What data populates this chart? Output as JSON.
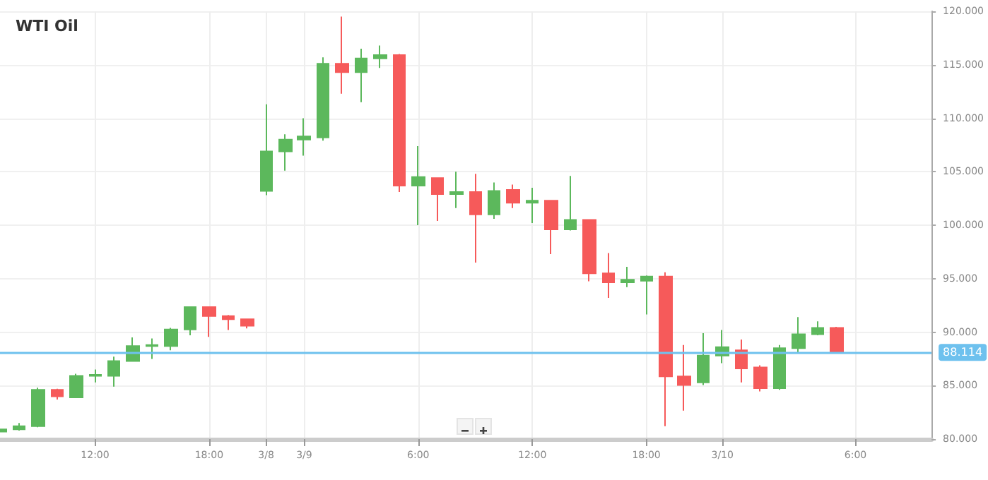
{
  "chart_data": {
    "type": "candlestick",
    "title": "WTI Oil",
    "categories": [
      null,
      null,
      null,
      null,
      null,
      "12:00",
      null,
      null,
      null,
      null,
      null,
      "18:00",
      null,
      null,
      "3/8",
      null,
      "3/9",
      null,
      null,
      null,
      null,
      null,
      "6:00",
      null,
      null,
      null,
      null,
      null,
      "12:00",
      null,
      null,
      null,
      null,
      null,
      "18:00",
      null,
      null,
      null,
      "3/10",
      null,
      null,
      null,
      null,
      null,
      null,
      "6:00",
      null,
      null,
      null,
      null
    ],
    "ohlc": [
      [
        80.7,
        81.0,
        80.4,
        80.9
      ],
      [
        80.9,
        81.5,
        80.8,
        81.2
      ],
      [
        81.2,
        84.8,
        81.1,
        84.6
      ],
      [
        84.6,
        84.7,
        83.7,
        84.0
      ],
      [
        83.9,
        86.1,
        83.9,
        85.9
      ],
      [
        85.9,
        86.5,
        85.3,
        86.0
      ],
      [
        85.9,
        87.7,
        84.9,
        87.3
      ],
      [
        87.3,
        89.5,
        87.3,
        88.7
      ],
      [
        88.7,
        89.4,
        87.5,
        88.8
      ],
      [
        88.7,
        90.4,
        88.3,
        90.25
      ],
      [
        90.25,
        92.4,
        89.7,
        92.35
      ],
      [
        92.35,
        92.4,
        89.55,
        91.5
      ],
      [
        91.5,
        91.6,
        90.2,
        91.2
      ],
      [
        91.2,
        91.2,
        90.35,
        90.6
      ],
      [
        103.2,
        111.3,
        102.8,
        106.9
      ],
      [
        106.9,
        108.5,
        105.1,
        108.0
      ],
      [
        108.0,
        110.0,
        106.5,
        108.3
      ],
      [
        108.2,
        115.7,
        107.9,
        115.1
      ],
      [
        115.1,
        119.5,
        112.3,
        114.3
      ],
      [
        114.3,
        116.5,
        111.5,
        115.6
      ],
      [
        115.6,
        116.8,
        114.7,
        115.9
      ],
      [
        115.9,
        116.0,
        103.1,
        103.7
      ],
      [
        103.7,
        107.4,
        100.0,
        104.5
      ],
      [
        104.4,
        104.4,
        100.4,
        102.9
      ],
      [
        102.9,
        105.0,
        101.6,
        103.1
      ],
      [
        103.1,
        104.8,
        96.5,
        101.0
      ],
      [
        101.0,
        104.0,
        100.6,
        103.2
      ],
      [
        103.3,
        103.8,
        101.6,
        102.1
      ],
      [
        102.1,
        103.5,
        100.2,
        102.3
      ],
      [
        102.3,
        102.3,
        97.3,
        99.6
      ],
      [
        99.6,
        104.6,
        99.5,
        100.5
      ],
      [
        100.5,
        100.5,
        94.75,
        95.5
      ],
      [
        95.5,
        97.4,
        93.2,
        94.65
      ],
      [
        94.65,
        96.1,
        94.2,
        94.9
      ],
      [
        94.8,
        95.3,
        91.65,
        95.2
      ],
      [
        95.2,
        95.6,
        81.2,
        85.85
      ],
      [
        85.85,
        88.8,
        82.65,
        85.05
      ],
      [
        85.3,
        89.9,
        85.05,
        87.8
      ],
      [
        87.8,
        90.2,
        87.1,
        88.6
      ],
      [
        88.3,
        89.3,
        85.3,
        86.6
      ],
      [
        86.7,
        86.9,
        84.45,
        84.75
      ],
      [
        84.75,
        88.8,
        84.6,
        88.5
      ],
      [
        88.5,
        91.4,
        88.1,
        89.8
      ],
      [
        89.8,
        91.0,
        89.7,
        90.4
      ],
      [
        90.4,
        90.5,
        88.1,
        88.1
      ],
      null,
      null,
      null,
      null,
      null
    ],
    "colors": [
      "#5cb85c",
      "#5cb85c",
      "#5cb85c",
      "#f65a5a",
      "#5cb85c",
      "#5cb85c",
      "#5cb85c",
      "#5cb85c",
      "#5cb85c",
      "#5cb85c",
      "#5cb85c",
      "#f65a5a",
      "#f65a5a",
      "#f65a5a",
      "#5cb85c",
      "#5cb85c",
      "#5cb85c",
      "#5cb85c",
      "#f65a5a",
      "#5cb85c",
      "#5cb85c",
      "#f65a5a",
      "#5cb85c",
      "#f65a5a",
      "#5cb85c",
      "#f65a5a",
      "#5cb85c",
      "#f65a5a",
      "#5cb85c",
      "#f65a5a",
      "#5cb85c",
      "#f65a5a",
      "#f65a5a",
      "#5cb85c",
      "#5cb85c",
      "#f65a5a",
      "#f65a5a",
      "#5cb85c",
      "#5cb85c",
      "#f65a5a",
      "#f65a5a",
      "#5cb85c",
      "#5cb85c",
      "#5cb85c",
      "#f65a5a",
      null,
      null,
      null,
      null,
      null
    ],
    "ylim": [
      80,
      120
    ],
    "yticks": [
      {
        "value": 80,
        "label": "80.000"
      },
      {
        "value": 85,
        "label": "85.000"
      },
      {
        "value": 90,
        "label": "90.000"
      },
      {
        "value": 95,
        "label": "95.000"
      },
      {
        "value": 100,
        "label": "100.000"
      },
      {
        "value": 105,
        "label": "105.000"
      },
      {
        "value": 110,
        "label": "110.000"
      },
      {
        "value": 115,
        "label": "115.000"
      },
      {
        "value": 120,
        "label": "120.000"
      }
    ],
    "ref_lines": [
      {
        "axis": "y",
        "value": 88.114,
        "label": "88.114",
        "color": "#6ec1ee"
      }
    ],
    "grid": true
  }
}
